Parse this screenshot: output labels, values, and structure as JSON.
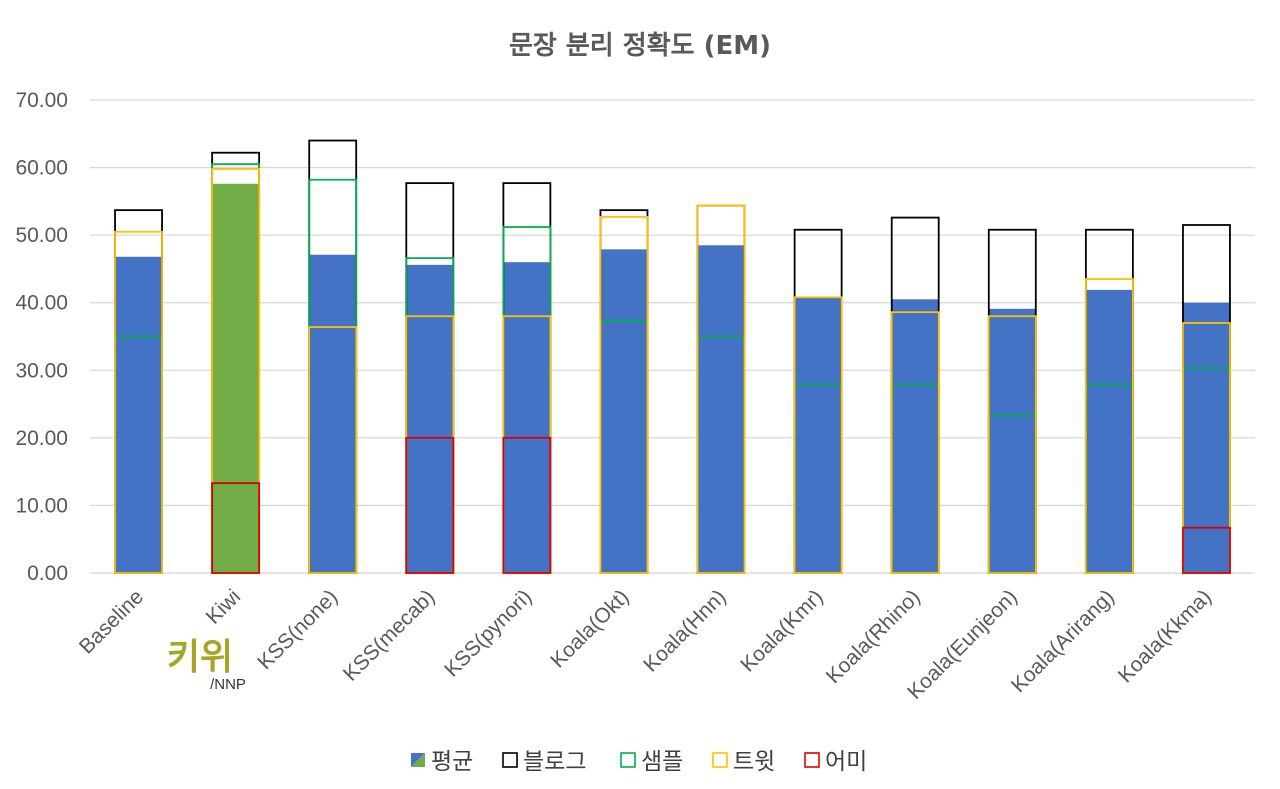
{
  "chart_data": {
    "type": "bar",
    "title": "문장 분리 정확도 (EM)",
    "xlabel": "",
    "ylabel": "",
    "ylim": [
      0,
      70
    ],
    "yticks": [
      "0.00",
      "10.00",
      "20.00",
      "30.00",
      "40.00",
      "50.00",
      "60.00",
      "70.00"
    ],
    "grid": true,
    "legend_position": "bottom",
    "categories": [
      "Baseline",
      "Kiwi",
      "KSS(none)",
      "KSS(mecab)",
      "KSS(pynori)",
      "Koala(Okt)",
      "Koala(Hnn)",
      "Koala(Kmr)",
      "Koala(Rhino)",
      "Koala(Eunjeon)",
      "Koala(Arirang)",
      "Koala(Kkma)"
    ],
    "series": [
      {
        "name": "평균",
        "style": "filled",
        "color": "#4472c4",
        "highlight_color": "#70ad47",
        "values": [
          46.8,
          57.6,
          47.1,
          45.6,
          46.0,
          47.9,
          48.5,
          40.7,
          40.5,
          39.1,
          41.9,
          40.0
        ]
      },
      {
        "name": "블로그",
        "style": "outline",
        "color": "#000000",
        "values": [
          53.7,
          62.2,
          64.0,
          57.7,
          57.7,
          53.7,
          54.4,
          50.8,
          52.6,
          50.8,
          50.8,
          51.5
        ]
      },
      {
        "name": "샘플",
        "style": "outline",
        "color": "#00b050",
        "values": [
          35.0,
          60.5,
          58.2,
          46.6,
          51.2,
          37.3,
          35.0,
          27.9,
          27.9,
          23.3,
          27.9,
          30.3
        ]
      },
      {
        "name": "트윗",
        "style": "outline",
        "color": "#ffc000",
        "values": [
          50.5,
          59.8,
          36.4,
          38.0,
          38.0,
          52.7,
          54.4,
          40.8,
          38.6,
          38.0,
          43.5,
          37.0
        ]
      },
      {
        "name": "어미",
        "style": "outline",
        "color": "#e00000",
        "values": [
          0,
          13.3,
          0,
          20.0,
          20.0,
          0,
          0,
          0,
          0,
          0,
          0,
          6.7
        ]
      }
    ],
    "highlight_category": "Kiwi"
  },
  "logo": {
    "text": "키위",
    "sub": "/NNP"
  }
}
